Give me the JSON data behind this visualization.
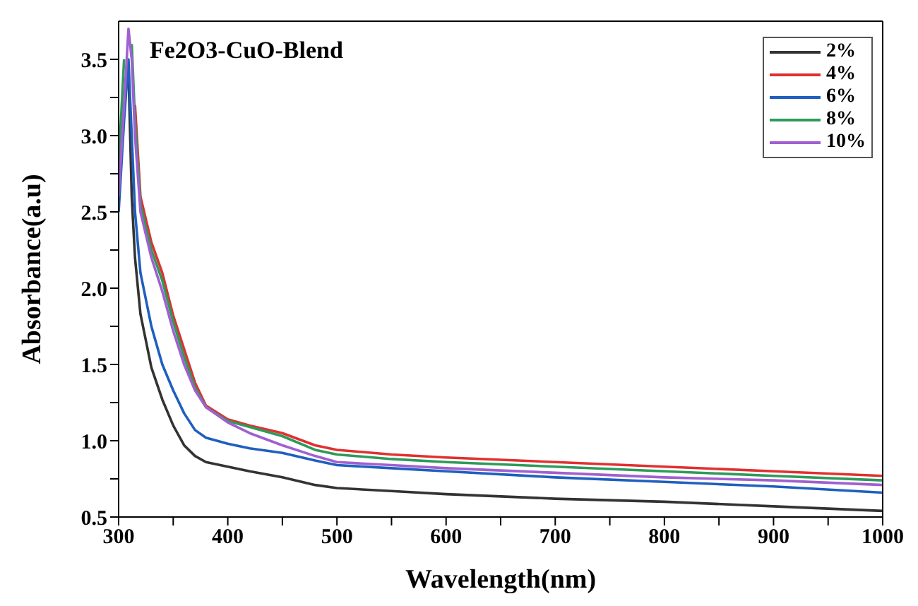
{
  "chart_data": {
    "type": "line",
    "title": "Fe2O3-CuO-Blend",
    "xlabel": "Wavelength(nm)",
    "ylabel": "Absorbance(a.u)",
    "x": [
      300,
      305,
      309,
      312,
      315,
      320,
      330,
      340,
      350,
      360,
      370,
      380,
      400,
      420,
      450,
      480,
      500,
      550,
      600,
      700,
      800,
      900,
      1000
    ],
    "series": [
      {
        "name": "2%",
        "color": "#333333",
        "values": [
          2.6,
          3.2,
          3.44,
          2.6,
          2.2,
          1.83,
          1.48,
          1.27,
          1.1,
          0.97,
          0.9,
          0.86,
          0.83,
          0.8,
          0.76,
          0.71,
          0.69,
          0.67,
          0.65,
          0.62,
          0.6,
          0.57,
          0.54
        ]
      },
      {
        "name": "4%",
        "color": "#e03030",
        "values": [
          null,
          null,
          null,
          null,
          3.2,
          2.6,
          2.3,
          2.1,
          1.82,
          1.6,
          1.38,
          1.23,
          1.14,
          1.1,
          1.05,
          0.97,
          0.94,
          0.91,
          0.89,
          0.86,
          0.83,
          0.8,
          0.77
        ]
      },
      {
        "name": "6%",
        "color": "#1f5fbf",
        "values": [
          2.5,
          3.1,
          3.5,
          3.0,
          2.5,
          2.1,
          1.75,
          1.5,
          1.33,
          1.18,
          1.07,
          1.02,
          0.98,
          0.95,
          0.92,
          0.87,
          0.84,
          0.82,
          0.8,
          0.76,
          0.73,
          0.7,
          0.66
        ]
      },
      {
        "name": "8%",
        "color": "#2e9a5a",
        "values": [
          2.8,
          3.5,
          null,
          3.6,
          3.1,
          2.55,
          2.25,
          2.05,
          1.78,
          1.55,
          1.35,
          1.22,
          1.13,
          1.09,
          1.03,
          0.94,
          0.91,
          0.88,
          0.86,
          0.83,
          0.8,
          0.77,
          0.74
        ]
      },
      {
        "name": "10%",
        "color": "#a060d0",
        "values": [
          2.6,
          3.2,
          3.7,
          3.5,
          3.0,
          2.5,
          2.2,
          1.98,
          1.72,
          1.5,
          1.33,
          1.22,
          1.12,
          1.05,
          0.97,
          0.9,
          0.86,
          0.84,
          0.82,
          0.79,
          0.76,
          0.74,
          0.71
        ]
      }
    ],
    "xlim": [
      300,
      1000
    ],
    "xticks": [
      300,
      {
        "value": 350,
        "label": null
      },
      400,
      {
        "value": 450,
        "label": null
      },
      500,
      {
        "value": 550,
        "label": null
      },
      600,
      {
        "value": 650,
        "label": null
      },
      700,
      {
        "value": 750,
        "label": null
      },
      800,
      {
        "value": 850,
        "label": null
      },
      900,
      {
        "value": 950,
        "label": null
      },
      1000
    ],
    "ylim": [
      0.5,
      3.75
    ],
    "yticks": [
      0.5,
      {
        "value": 0.75,
        "label": null
      },
      {
        "value": 1,
        "label": "1.0"
      },
      {
        "value": 1.25,
        "label": null
      },
      1.5,
      {
        "value": 1.75,
        "label": null
      },
      {
        "value": 2,
        "label": "2.0"
      },
      {
        "value": 2.25,
        "label": null
      },
      2.5,
      {
        "value": 2.75,
        "label": null
      },
      {
        "value": 3,
        "label": "3.0"
      },
      {
        "value": 3.25,
        "label": null
      },
      3.5
    ],
    "grid": false,
    "legend": "top right",
    "marker": "none",
    "line_style": "solid"
  }
}
